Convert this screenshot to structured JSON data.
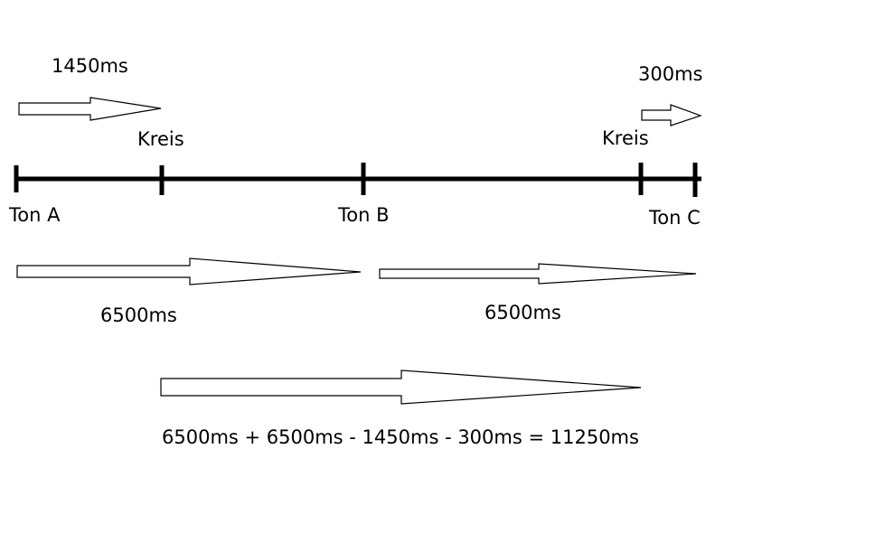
{
  "labels": {
    "duration_1450": "1450ms",
    "duration_300": "300ms",
    "kreis_1": "Kreis",
    "kreis_2": "Kreis",
    "ton_a": "Ton A",
    "ton_b": "Ton B",
    "ton_c": "Ton C",
    "duration_6500_a": "6500ms",
    "duration_6500_b": "6500ms",
    "formula": "6500ms + 6500ms - 1450ms - 300ms = 11250ms"
  },
  "colors": {
    "line": "#000000",
    "arrow_fill": "#ffffff",
    "text": "#000000"
  }
}
